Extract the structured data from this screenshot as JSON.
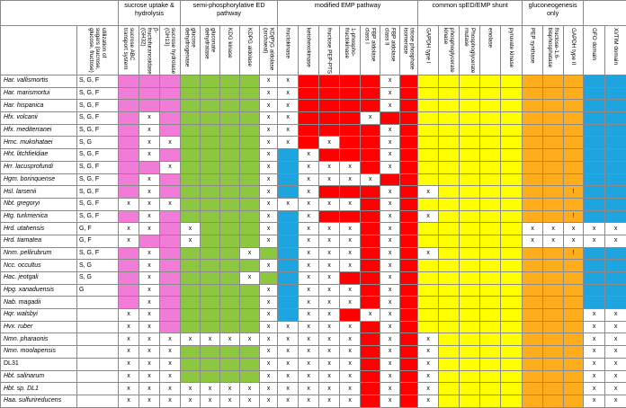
{
  "header": {
    "utilization": "utilization of sugars (sucrose, glucose, fructose)"
  },
  "groups": [
    {
      "title": "sucrose uptake & hydrolysis",
      "columns": [
        {
          "label": "sucrose ABC transport system",
          "color": "#f07cd8"
        },
        {
          "label": "β-fructofuranosidase (GH32)",
          "color": "#f07cd8"
        },
        {
          "label": "sucrose hydrolase (GH13)",
          "color": "#f07cd8"
        }
      ]
    },
    {
      "title": "semi-phosphorylative ED pathway",
      "columns": [
        {
          "label": "glucose dehydrogenase",
          "color": "#8dc63f"
        },
        {
          "label": "gluconate dehydratase",
          "color": "#8dc63f"
        },
        {
          "label": "KDG kinase",
          "color": "#8dc63f"
        },
        {
          "label": "KDPG aldolase",
          "color": "#8dc63f"
        },
        {
          "label": "KD(P)G aldolase (archaeal)",
          "color": "#8dc63f"
        }
      ]
    },
    {
      "title": "modified EMP pathway",
      "columns": [
        {
          "label": "fructokinase",
          "color": "#1ea5e0"
        },
        {
          "label": "ketohexokinase",
          "color": "#ff0000"
        },
        {
          "label": "fructose PEP-PTS",
          "color": "#ff0000"
        },
        {
          "label": "1-phospho-fructokinase",
          "color": "#ff0000"
        },
        {
          "label": "FBP aldolase class I",
          "color": "#ff0000"
        },
        {
          "label": "FBP aldolase class II",
          "color": "#ff0000"
        },
        {
          "label": "triose phosphate isomerase",
          "color": "#ff0000"
        }
      ]
    },
    {
      "title": "common spED/EMP shunt",
      "columns": [
        {
          "label": "GAPDH type I",
          "color": "#ffff00"
        },
        {
          "label": "phosphoglycerate kinase",
          "color": "#ffff00"
        },
        {
          "label": "Phosphoglycerate mutase",
          "color": "#ffff00"
        },
        {
          "label": "enolase",
          "color": "#ffff00"
        },
        {
          "label": "pyruvate kinase",
          "color": "#ffff00"
        }
      ]
    },
    {
      "title": "gluconeogenesis only",
      "columns": [
        {
          "label": "PEP synthase",
          "color": "#ffad1c"
        },
        {
          "label": "fructose-1,6-bisphosphatase",
          "color": "#ffad1c"
        },
        {
          "label": "GAPDH type II",
          "color": "#ffad1c"
        }
      ]
    },
    {
      "title": null,
      "columns": [
        {
          "label": "GFO domain",
          "color": "#1ea5e0"
        },
        {
          "label": "XI/TIM domain",
          "color": "#1ea5e0"
        }
      ]
    }
  ],
  "rows": [
    {
      "organism": "Har. vallismortis",
      "utilization": "S, G, F",
      "cells": [
        null,
        null,
        null,
        null,
        null,
        null,
        null,
        "x",
        "x",
        null,
        null,
        null,
        null,
        "x",
        null,
        null,
        null,
        null,
        null,
        null,
        null,
        null,
        null,
        null,
        null
      ]
    },
    {
      "organism": "Har. marismortui",
      "utilization": "S, G, F",
      "cells": [
        null,
        null,
        null,
        null,
        null,
        null,
        null,
        "x",
        "x",
        null,
        null,
        null,
        null,
        "x",
        null,
        null,
        null,
        null,
        null,
        null,
        null,
        null,
        null,
        null,
        null
      ]
    },
    {
      "organism": "Har. hispanica",
      "utilization": "S, G, F",
      "cells": [
        null,
        null,
        null,
        null,
        null,
        null,
        null,
        "x",
        "x",
        null,
        null,
        null,
        null,
        "x",
        null,
        null,
        null,
        null,
        null,
        null,
        null,
        null,
        null,
        null,
        null
      ]
    },
    {
      "organism": "Hfx. volcanii",
      "utilization": "S, G, F",
      "cells": [
        null,
        "x",
        null,
        null,
        null,
        null,
        null,
        "x",
        "x",
        null,
        null,
        null,
        "x",
        null,
        null,
        null,
        null,
        null,
        null,
        null,
        null,
        null,
        null,
        null,
        null
      ]
    },
    {
      "organism": "Hfx. mediterranei",
      "utilization": "S, G, F",
      "cells": [
        null,
        "x",
        null,
        null,
        null,
        null,
        null,
        "x",
        "x",
        null,
        null,
        null,
        null,
        "x",
        null,
        null,
        null,
        null,
        null,
        null,
        null,
        null,
        null,
        null,
        null
      ]
    },
    {
      "organism": "Hmc. mukohataei",
      "utilization": "S, G",
      "cells": [
        null,
        "x",
        "x",
        null,
        null,
        null,
        null,
        "x",
        "x",
        null,
        "x",
        null,
        null,
        "x",
        null,
        null,
        null,
        null,
        null,
        null,
        null,
        null,
        null,
        null,
        null
      ]
    },
    {
      "organism": "Hht. litchfieldiae",
      "utilization": "S, G, F",
      "cells": [
        null,
        "x",
        null,
        null,
        null,
        null,
        null,
        "x",
        null,
        "x",
        null,
        null,
        null,
        "x",
        null,
        null,
        null,
        null,
        null,
        null,
        null,
        null,
        null,
        null,
        null
      ]
    },
    {
      "organism": "Hrr. lacusprofundi",
      "utilization": "S, G, F",
      "cells": [
        null,
        null,
        "x",
        null,
        null,
        null,
        null,
        "x",
        null,
        "x",
        "x",
        "x",
        null,
        "x",
        null,
        null,
        null,
        null,
        null,
        null,
        null,
        null,
        null,
        null,
        null
      ]
    },
    {
      "organism": "Hgm. borinquense",
      "utilization": "S, G, F",
      "cells": [
        null,
        "x",
        null,
        null,
        null,
        null,
        null,
        "x",
        null,
        "x",
        "x",
        "x",
        "x",
        null,
        null,
        null,
        null,
        null,
        null,
        null,
        null,
        null,
        null,
        null,
        null
      ]
    },
    {
      "organism": "Hsl. larsenii",
      "utilization": "S, G, F",
      "cells": [
        null,
        "x",
        null,
        null,
        null,
        null,
        null,
        "x",
        null,
        "x",
        null,
        null,
        null,
        "x",
        null,
        "x",
        null,
        null,
        null,
        null,
        null,
        null,
        "!",
        null,
        null
      ]
    },
    {
      "organism": "Nbt. gregoryi",
      "utilization": "S, G, F",
      "cells": [
        "x",
        "x",
        "x",
        null,
        null,
        null,
        null,
        "x",
        "x",
        "x",
        "x",
        "x",
        null,
        "x",
        null,
        null,
        null,
        null,
        null,
        null,
        null,
        null,
        null,
        null,
        null
      ]
    },
    {
      "organism": "Htg. turkmenica",
      "utilization": "S, G, F",
      "cells": [
        null,
        "x",
        null,
        null,
        null,
        null,
        null,
        "x",
        null,
        "x",
        null,
        null,
        null,
        "x",
        null,
        "x",
        null,
        null,
        null,
        null,
        null,
        null,
        "!",
        null,
        null
      ]
    },
    {
      "organism": "Hrd. utahensis",
      "utilization": "G, F",
      "cells": [
        "x",
        "x",
        null,
        "x",
        null,
        null,
        null,
        "x",
        null,
        "x",
        "x",
        "x",
        null,
        "x",
        null,
        null,
        null,
        null,
        null,
        null,
        "x",
        "x",
        "x",
        "x",
        "x"
      ]
    },
    {
      "organism": "Hrd. tiamatea",
      "utilization": "G, F",
      "cells": [
        "x",
        null,
        null,
        "x",
        null,
        null,
        null,
        "x",
        null,
        "x",
        "x",
        "x",
        null,
        "x",
        null,
        null,
        null,
        null,
        null,
        null,
        "x",
        "x",
        "x",
        "x",
        "x"
      ]
    },
    {
      "organism": "Nnm. pellirubrum",
      "utilization": "S, G, F",
      "cells": [
        null,
        "x",
        null,
        null,
        null,
        null,
        "x",
        null,
        null,
        "x",
        "x",
        "x",
        null,
        "x",
        null,
        "x",
        null,
        null,
        null,
        null,
        null,
        null,
        "!",
        null,
        null
      ]
    },
    {
      "organism": "Ncc. occultus",
      "utilization": "S, G",
      "cells": [
        null,
        "x",
        null,
        null,
        null,
        null,
        null,
        "x",
        null,
        "x",
        "x",
        "x",
        null,
        "x",
        null,
        null,
        null,
        null,
        null,
        null,
        null,
        null,
        null,
        null,
        null
      ]
    },
    {
      "organism": "Hac. jeotgali",
      "utilization": "S, G",
      "cells": [
        null,
        "x",
        null,
        null,
        null,
        null,
        "x",
        null,
        null,
        "x",
        "x",
        null,
        null,
        "x",
        null,
        null,
        null,
        null,
        null,
        null,
        null,
        null,
        null,
        null,
        null
      ]
    },
    {
      "organism": "Hpg. xanaduensis",
      "utilization": "G",
      "cells": [
        null,
        "x",
        null,
        null,
        null,
        null,
        null,
        "x",
        null,
        "x",
        "x",
        "x",
        null,
        "x",
        null,
        null,
        null,
        null,
        null,
        null,
        null,
        null,
        null,
        null,
        null
      ]
    },
    {
      "organism": "Nab. magadii",
      "utilization": null,
      "cells": [
        null,
        "x",
        null,
        null,
        null,
        null,
        null,
        "x",
        null,
        "x",
        "x",
        "x",
        null,
        "x",
        null,
        null,
        null,
        null,
        null,
        null,
        null,
        null,
        null,
        null,
        null
      ]
    },
    {
      "organism": "Hqr. walsbyi",
      "utilization": null,
      "cells": [
        "x",
        "x",
        null,
        null,
        null,
        null,
        null,
        "x",
        null,
        "x",
        "x",
        null,
        "x",
        "x",
        null,
        null,
        null,
        null,
        null,
        null,
        null,
        null,
        null,
        "x",
        "x"
      ]
    },
    {
      "organism": "Hvx. ruber",
      "utilization": null,
      "cells": [
        "x",
        "x",
        null,
        null,
        null,
        null,
        null,
        "x",
        "x",
        "x",
        "x",
        "x",
        null,
        "x",
        null,
        null,
        null,
        null,
        null,
        null,
        null,
        null,
        null,
        "x",
        "x"
      ]
    },
    {
      "organism": "Nmn. pharaonis",
      "utilization": null,
      "cells": [
        "x",
        "x",
        "x",
        "x",
        "x",
        "x",
        "x",
        "x",
        "x",
        "x",
        "x",
        "x",
        null,
        "x",
        null,
        "x",
        null,
        null,
        null,
        null,
        null,
        null,
        null,
        "x",
        "x"
      ]
    },
    {
      "organism": "Nmn. moolapensis",
      "utilization": null,
      "cells": [
        "x",
        "x",
        "x",
        null,
        null,
        null,
        null,
        "x",
        "x",
        "x",
        "x",
        "x",
        null,
        "x",
        null,
        "x",
        null,
        null,
        null,
        null,
        null,
        null,
        null,
        "x",
        "x"
      ]
    },
    {
      "organism": "DL31",
      "utilization": null,
      "cells": [
        "x",
        "x",
        "x",
        null,
        null,
        null,
        null,
        "x",
        "x",
        "x",
        "x",
        "x",
        null,
        "x",
        null,
        "x",
        null,
        null,
        null,
        null,
        null,
        null,
        null,
        "x",
        "x"
      ]
    },
    {
      "organism": "Hbt. salinarum",
      "utilization": null,
      "cells": [
        "x",
        "x",
        "x",
        null,
        null,
        null,
        null,
        "x",
        "x",
        "x",
        "x",
        "x",
        null,
        "x",
        null,
        "x",
        null,
        null,
        null,
        null,
        null,
        null,
        null,
        "x",
        "x"
      ]
    },
    {
      "organism": "Hbt. sp. DL1",
      "utilization": null,
      "cells": [
        "x",
        "x",
        "x",
        "x",
        "x",
        "x",
        "x",
        "x",
        "x",
        "x",
        "x",
        "x",
        null,
        "x",
        null,
        "x",
        null,
        null,
        null,
        null,
        null,
        null,
        null,
        "x",
        "x"
      ]
    },
    {
      "organism": "Haa. sulfurireducens",
      "utilization": null,
      "cells": [
        "x",
        "x",
        "x",
        "x",
        "x",
        "x",
        "x",
        "x",
        "x",
        "x",
        "x",
        "x",
        null,
        "x",
        null,
        "x",
        null,
        null,
        null,
        null,
        null,
        null,
        null,
        "x",
        "x"
      ]
    }
  ]
}
